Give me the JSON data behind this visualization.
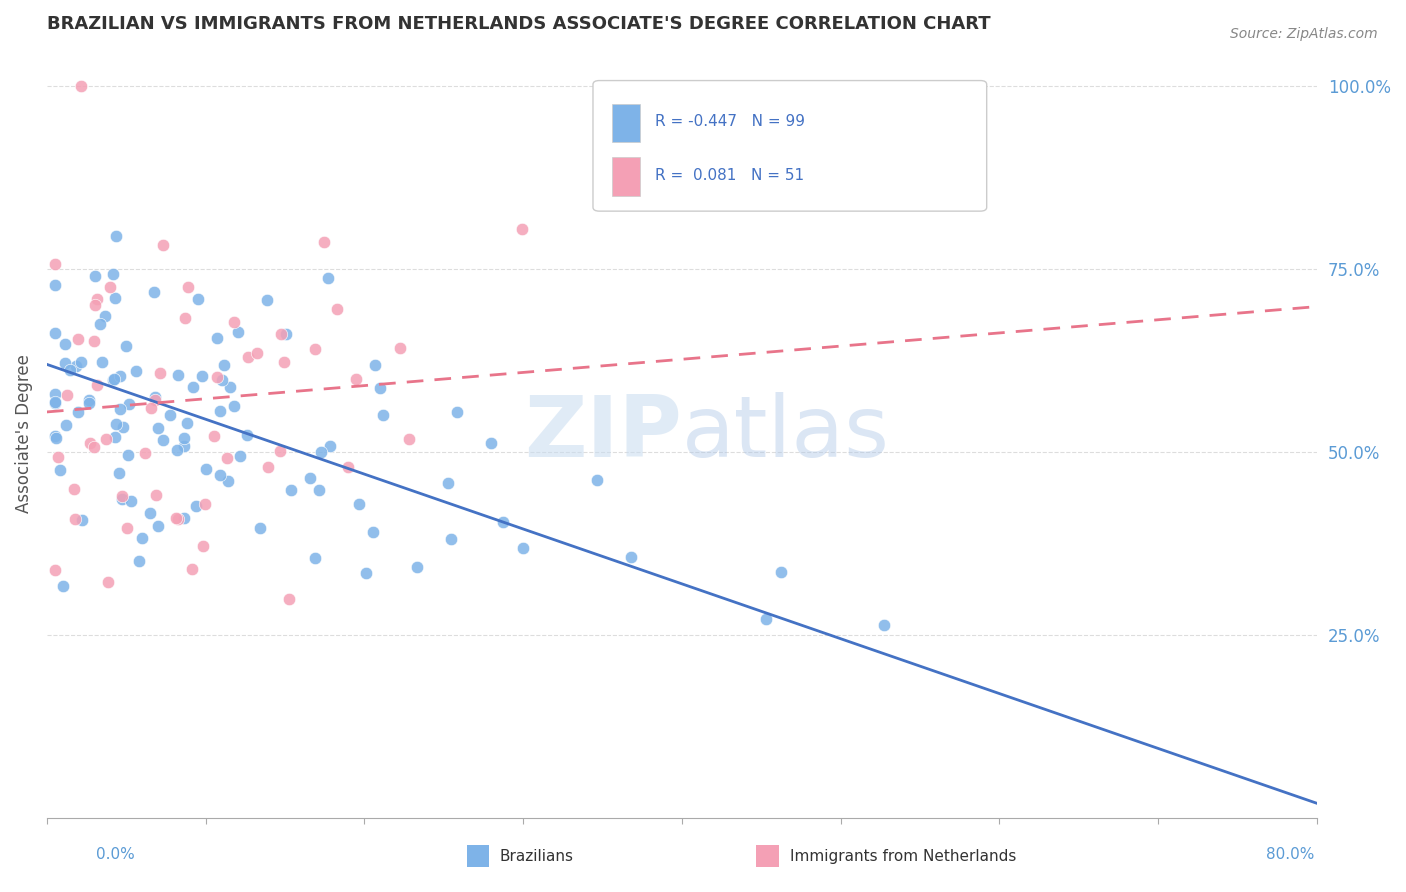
{
  "title": "BRAZILIAN VS IMMIGRANTS FROM NETHERLANDS ASSOCIATE'S DEGREE CORRELATION CHART",
  "source": "Source: ZipAtlas.com",
  "ylabel": "Associate's Degree",
  "xlim": [
    0.0,
    0.8
  ],
  "ylim": [
    0.0,
    1.05
  ],
  "legend_r1": "-0.447",
  "legend_n1": "99",
  "legend_r2": "0.081",
  "legend_n2": "51",
  "blue_color": "#7EB3E8",
  "pink_color": "#F4A0B5",
  "blue_line_color": "#4472C4",
  "pink_line_color": "#E8748A",
  "background_color": "#FFFFFF",
  "watermark_zip": "ZIP",
  "watermark_atlas": "atlas",
  "title_color": "#333333",
  "axis_label_color": "#5B9BD5",
  "grid_color": "#DDDDDD",
  "slope_blue": -0.75,
  "intercept_blue": 0.62,
  "slope_pink": 0.18,
  "intercept_pink": 0.555
}
